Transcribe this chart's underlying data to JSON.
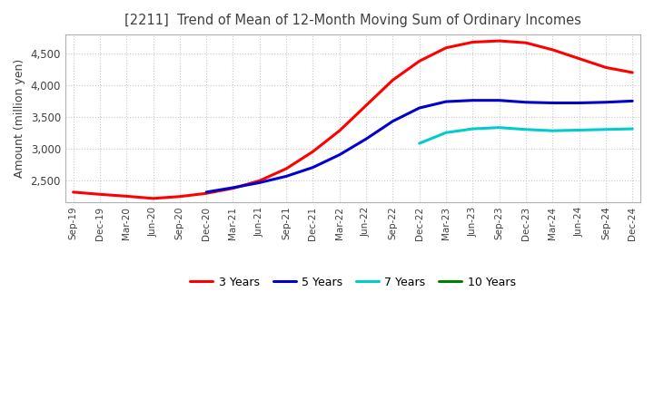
{
  "title": "[2211]  Trend of Mean of 12-Month Moving Sum of Ordinary Incomes",
  "ylabel": "Amount (million yen)",
  "title_color": "#404040",
  "background_color": "#ffffff",
  "plot_bg_color": "#ffffff",
  "grid_color": "#c8c8c8",
  "x_labels": [
    "Sep-19",
    "Dec-19",
    "Mar-20",
    "Jun-20",
    "Sep-20",
    "Dec-20",
    "Mar-21",
    "Jun-21",
    "Sep-21",
    "Dec-21",
    "Mar-22",
    "Jun-22",
    "Sep-22",
    "Dec-22",
    "Mar-23",
    "Jun-23",
    "Sep-23",
    "Dec-23",
    "Mar-24",
    "Jun-24",
    "Sep-24",
    "Dec-24"
  ],
  "series": {
    "3 Years": {
      "color": "#ff0000",
      "values": [
        2310,
        2275,
        2245,
        2210,
        2240,
        2290,
        2370,
        2490,
        2680,
        2950,
        3280,
        3680,
        4080,
        4380,
        4590,
        4680,
        4700,
        4670,
        4560,
        4420,
        4280,
        4200
      ]
    },
    "5 Years": {
      "color": "#0000cc",
      "values": [
        null,
        null,
        null,
        null,
        null,
        2310,
        2380,
        2460,
        2560,
        2700,
        2900,
        3150,
        3430,
        3640,
        3740,
        3760,
        3760,
        3730,
        3720,
        3720,
        3730,
        3750
      ]
    },
    "7 Years": {
      "color": "#00cccc",
      "values": [
        null,
        null,
        null,
        null,
        null,
        null,
        null,
        null,
        null,
        null,
        null,
        null,
        null,
        3080,
        3250,
        3310,
        3330,
        3300,
        3280,
        3290,
        3300,
        3310
      ]
    },
    "10 Years": {
      "color": "#008000",
      "values": [
        null,
        null,
        null,
        null,
        null,
        null,
        null,
        null,
        null,
        null,
        null,
        null,
        null,
        null,
        null,
        null,
        null,
        null,
        null,
        null,
        null,
        null
      ]
    }
  },
  "ylim": [
    2150,
    4800
  ],
  "yticks": [
    2500,
    3000,
    3500,
    4000,
    4500
  ],
  "line_width": 2.2
}
